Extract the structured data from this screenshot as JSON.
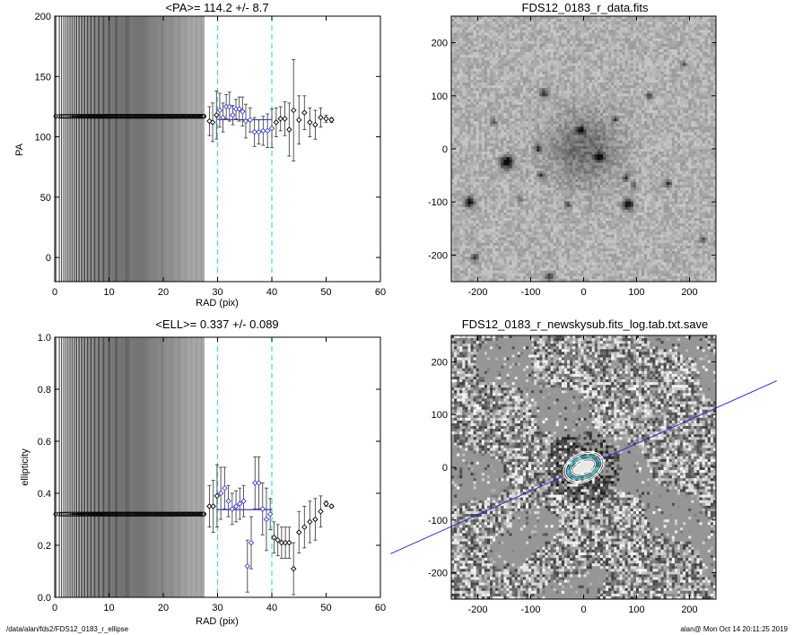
{
  "chart_data": [
    {
      "type": "scatter",
      "title": "<PA>= 114.2 +/-   8.7",
      "xlabel": "RAD (pix)",
      "ylabel": "PA",
      "xlim": [
        0,
        60
      ],
      "ylim": [
        -20,
        200
      ],
      "xticks": [
        "0",
        "10",
        "20",
        "30",
        "40",
        "60",
        "50"
      ],
      "xtick_values": [
        0,
        10,
        20,
        30,
        40,
        60,
        50
      ],
      "yticks": [
        "0",
        "50",
        "100",
        "150",
        "200"
      ],
      "ytick_values": [
        0,
        50,
        100,
        150,
        200
      ],
      "dashed_vlines": [
        30,
        40
      ],
      "mean_line": {
        "x": [
          30,
          40
        ],
        "y": 114.2,
        "color": "#3a3ad0"
      },
      "dense_points": {
        "x_start": 0.2,
        "x_end": 27.5,
        "y": 117
      },
      "points": [
        {
          "x": 28.5,
          "y": 113,
          "err": 12
        },
        {
          "x": 29.1,
          "y": 112,
          "err": 16
        },
        {
          "x": 29.8,
          "y": 118,
          "err": 20
        },
        {
          "x": 30.4,
          "y": 122,
          "err": 14
        },
        {
          "x": 31.0,
          "y": 116,
          "err": 12
        },
        {
          "x": 31.6,
          "y": 125,
          "err": 10
        },
        {
          "x": 32.2,
          "y": 125,
          "err": 12
        },
        {
          "x": 32.8,
          "y": 118,
          "err": 8
        },
        {
          "x": 33.4,
          "y": 123,
          "err": 8
        },
        {
          "x": 34.0,
          "y": 123,
          "err": 10
        },
        {
          "x": 34.6,
          "y": 121,
          "err": 12
        },
        {
          "x": 35.2,
          "y": 113,
          "err": 14
        },
        {
          "x": 36.0,
          "y": 114,
          "err": 10
        },
        {
          "x": 36.8,
          "y": 104,
          "err": 12
        },
        {
          "x": 37.6,
          "y": 104,
          "err": 10
        },
        {
          "x": 38.4,
          "y": 105,
          "err": 12
        },
        {
          "x": 39.2,
          "y": 105,
          "err": 14
        },
        {
          "x": 40.0,
          "y": 107,
          "err": 16
        },
        {
          "x": 40.8,
          "y": 112,
          "err": 12
        },
        {
          "x": 41.6,
          "y": 115,
          "err": 10
        },
        {
          "x": 42.4,
          "y": 115,
          "err": 14
        },
        {
          "x": 43.2,
          "y": 106,
          "err": 22
        },
        {
          "x": 44.0,
          "y": 122,
          "err": 42
        },
        {
          "x": 45.0,
          "y": 114,
          "err": 20
        },
        {
          "x": 46.0,
          "y": 120,
          "err": 14
        },
        {
          "x": 47.0,
          "y": 112,
          "err": 12
        },
        {
          "x": 48.0,
          "y": 110,
          "err": 12
        },
        {
          "x": 49.0,
          "y": 116,
          "err": 8
        },
        {
          "x": 50.0,
          "y": 115,
          "err": 3
        },
        {
          "x": 51.0,
          "y": 114,
          "err": 2
        }
      ]
    },
    {
      "type": "scatter",
      "title": "<ELL>= 0.337 +/-  0.089",
      "xlabel": "RAD (pix)",
      "ylabel": "ellipticity",
      "xlim": [
        0,
        60
      ],
      "ylim": [
        0,
        1
      ],
      "xticks": [
        "0",
        "10",
        "20",
        "30",
        "40",
        "50",
        "60"
      ],
      "xtick_values": [
        0,
        10,
        20,
        30,
        40,
        50,
        60
      ],
      "yticks": [
        "0.0",
        "0.2",
        "0.4",
        "0.6",
        "0.8",
        "1.0"
      ],
      "ytick_values": [
        0,
        0.2,
        0.4,
        0.6,
        0.8,
        1.0
      ],
      "dashed_vlines": [
        30,
        40
      ],
      "mean_line": {
        "x": [
          30,
          40
        ],
        "y": 0.337,
        "color": "#3a3ad0"
      },
      "dense_points": {
        "x_start": 0.2,
        "x_end": 27.5,
        "y": 0.32
      },
      "points": [
        {
          "x": 28.5,
          "y": 0.35,
          "err": 0.08
        },
        {
          "x": 29.2,
          "y": 0.35,
          "err": 0.1
        },
        {
          "x": 29.9,
          "y": 0.39,
          "err": 0.12
        },
        {
          "x": 30.6,
          "y": 0.4,
          "err": 0.1
        },
        {
          "x": 31.3,
          "y": 0.42,
          "err": 0.08
        },
        {
          "x": 32.0,
          "y": 0.37,
          "err": 0.06
        },
        {
          "x": 32.7,
          "y": 0.34,
          "err": 0.06
        },
        {
          "x": 33.4,
          "y": 0.35,
          "err": 0.06
        },
        {
          "x": 34.1,
          "y": 0.36,
          "err": 0.06
        },
        {
          "x": 34.8,
          "y": 0.37,
          "err": 0.06
        },
        {
          "x": 35.5,
          "y": 0.12,
          "err": 0.1
        },
        {
          "x": 36.2,
          "y": 0.21,
          "err": 0.1
        },
        {
          "x": 36.9,
          "y": 0.44,
          "err": 0.1
        },
        {
          "x": 37.6,
          "y": 0.44,
          "err": 0.1
        },
        {
          "x": 38.3,
          "y": 0.34,
          "err": 0.1
        },
        {
          "x": 39.0,
          "y": 0.3,
          "err": 0.12
        },
        {
          "x": 39.7,
          "y": 0.32,
          "err": 0.06
        },
        {
          "x": 40.4,
          "y": 0.23,
          "err": 0.06
        },
        {
          "x": 41.1,
          "y": 0.22,
          "err": 0.06
        },
        {
          "x": 41.8,
          "y": 0.21,
          "err": 0.06
        },
        {
          "x": 42.5,
          "y": 0.21,
          "err": 0.06
        },
        {
          "x": 43.2,
          "y": 0.21,
          "err": 0.06
        },
        {
          "x": 44.0,
          "y": 0.11,
          "err": 0.1
        },
        {
          "x": 45.0,
          "y": 0.25,
          "err": 0.08
        },
        {
          "x": 46.0,
          "y": 0.27,
          "err": 0.08
        },
        {
          "x": 47.0,
          "y": 0.29,
          "err": 0.08
        },
        {
          "x": 48.0,
          "y": 0.3,
          "err": 0.08
        },
        {
          "x": 49.0,
          "y": 0.33,
          "err": 0.06
        },
        {
          "x": 50.0,
          "y": 0.36,
          "err": 0.01
        },
        {
          "x": 51.0,
          "y": 0.35,
          "err": 0.005
        }
      ]
    },
    {
      "type": "heatmap",
      "title": "FDS12_0183_r_data.fits",
      "xlim": [
        -250,
        250
      ],
      "ylim": [
        -250,
        250
      ],
      "xticks": [
        "-200",
        "-100",
        "0",
        "100",
        "200"
      ],
      "xtick_values": [
        -200,
        -100,
        0,
        100,
        200
      ],
      "yticks": [
        "-200",
        "-100",
        "0",
        "100",
        "200"
      ],
      "ytick_values": [
        -200,
        -100,
        0,
        100,
        200
      ],
      "sources": [
        {
          "x": 0,
          "y": 0,
          "r": 55,
          "peak": 0.28
        },
        {
          "x": -145,
          "y": -25,
          "r": 10,
          "peak": 0.85
        },
        {
          "x": 85,
          "y": -105,
          "r": 8,
          "peak": 0.75
        },
        {
          "x": -215,
          "y": -100,
          "r": 8,
          "peak": 0.7
        },
        {
          "x": 30,
          "y": -15,
          "r": 7,
          "peak": 0.7
        },
        {
          "x": -5,
          "y": 35,
          "r": 6,
          "peak": 0.6
        },
        {
          "x": -75,
          "y": 105,
          "r": 7,
          "peak": 0.55
        },
        {
          "x": -85,
          "y": 0,
          "r": 6,
          "peak": 0.5
        },
        {
          "x": -80,
          "y": -50,
          "r": 5,
          "peak": 0.5
        },
        {
          "x": 95,
          "y": -70,
          "r": 5,
          "peak": 0.45
        },
        {
          "x": 80,
          "y": -55,
          "r": 5,
          "peak": 0.45
        },
        {
          "x": 160,
          "y": -65,
          "r": 6,
          "peak": 0.55
        },
        {
          "x": 125,
          "y": 100,
          "r": 5,
          "peak": 0.5
        },
        {
          "x": -170,
          "y": 50,
          "r": 5,
          "peak": 0.45
        },
        {
          "x": -205,
          "y": -205,
          "r": 6,
          "peak": 0.6
        },
        {
          "x": -65,
          "y": -240,
          "r": 6,
          "peak": 0.55
        },
        {
          "x": -30,
          "y": -105,
          "r": 5,
          "peak": 0.45
        },
        {
          "x": 225,
          "y": -170,
          "r": 5,
          "peak": 0.45
        },
        {
          "x": 190,
          "y": 160,
          "r": 4,
          "peak": 0.4
        },
        {
          "x": 60,
          "y": 55,
          "r": 4,
          "peak": 0.4
        },
        {
          "x": -120,
          "y": -95,
          "r": 4,
          "peak": 0.4
        }
      ]
    },
    {
      "type": "heatmap",
      "title": "FDS12_0183_r_newskysub.fits_log.tab.txt.save",
      "xlim": [
        -250,
        250
      ],
      "ylim": [
        -250,
        250
      ],
      "xticks": [
        "-200",
        "-100",
        "0",
        "100",
        "200"
      ],
      "xtick_values": [
        -200,
        -100,
        0,
        100,
        200
      ],
      "yticks": [
        "-200",
        "-100",
        "0",
        "100",
        "200"
      ],
      "ytick_values": [
        -200,
        -100,
        0,
        100,
        200
      ],
      "major_axis_line": {
        "pa_deg": 114.2,
        "color": "#2a2ad8"
      },
      "isophotes": [
        {
          "a": 20,
          "b": 10,
          "color": "#ffffff"
        },
        {
          "a": 24,
          "b": 13,
          "color": "#ffffff"
        },
        {
          "a": 28,
          "b": 17,
          "color": "#40d0d0"
        },
        {
          "a": 32,
          "b": 20,
          "color": "#40d0d0"
        },
        {
          "a": 36,
          "b": 24,
          "color": "#ffffff"
        },
        {
          "a": 40,
          "b": 27,
          "color": "#ffffff"
        }
      ]
    }
  ],
  "footer": {
    "left": "/data/alan/fds2/FDS12_0183_r_ellipse",
    "right": "alan@  Mon Oct 14 20:11:25 2019"
  }
}
